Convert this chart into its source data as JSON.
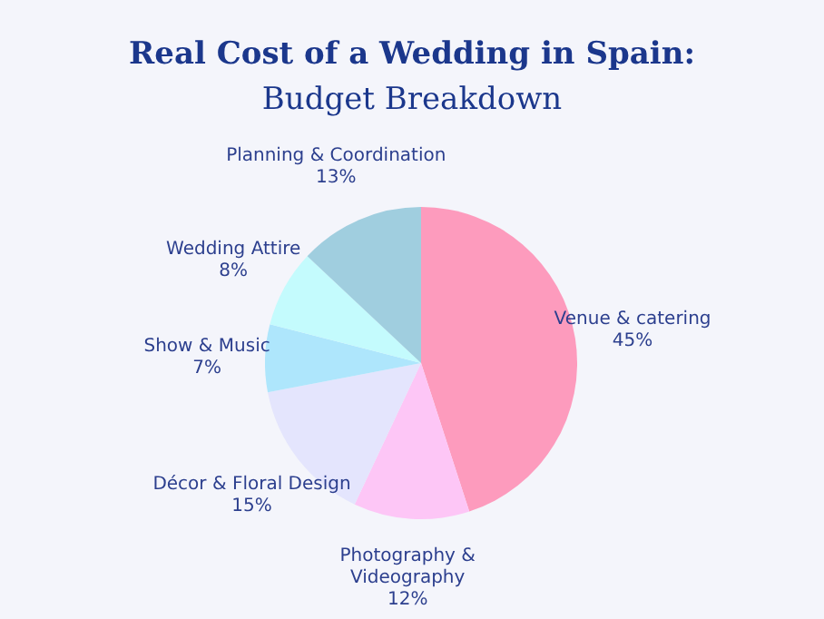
{
  "chart_data": {
    "type": "pie",
    "title": "Real Cost of a Wedding in Spain:",
    "subtitle": "Budget Breakdown",
    "categories": [
      "Venue & catering",
      "Photography & Videography",
      "Décor & Floral Design",
      "Show & Music",
      "Wedding Attire",
      "Planning & Coordination"
    ],
    "values": [
      45,
      12,
      15,
      7,
      8,
      13
    ],
    "value_labels": [
      "45%",
      "12%",
      "15%",
      "7%",
      "8%",
      "13%"
    ],
    "colors": [
      "#fd9bbd",
      "#fdc6f6",
      "#e4e5fd",
      "#aee6fc",
      "#c4fbfd",
      "#a0cedf"
    ]
  }
}
